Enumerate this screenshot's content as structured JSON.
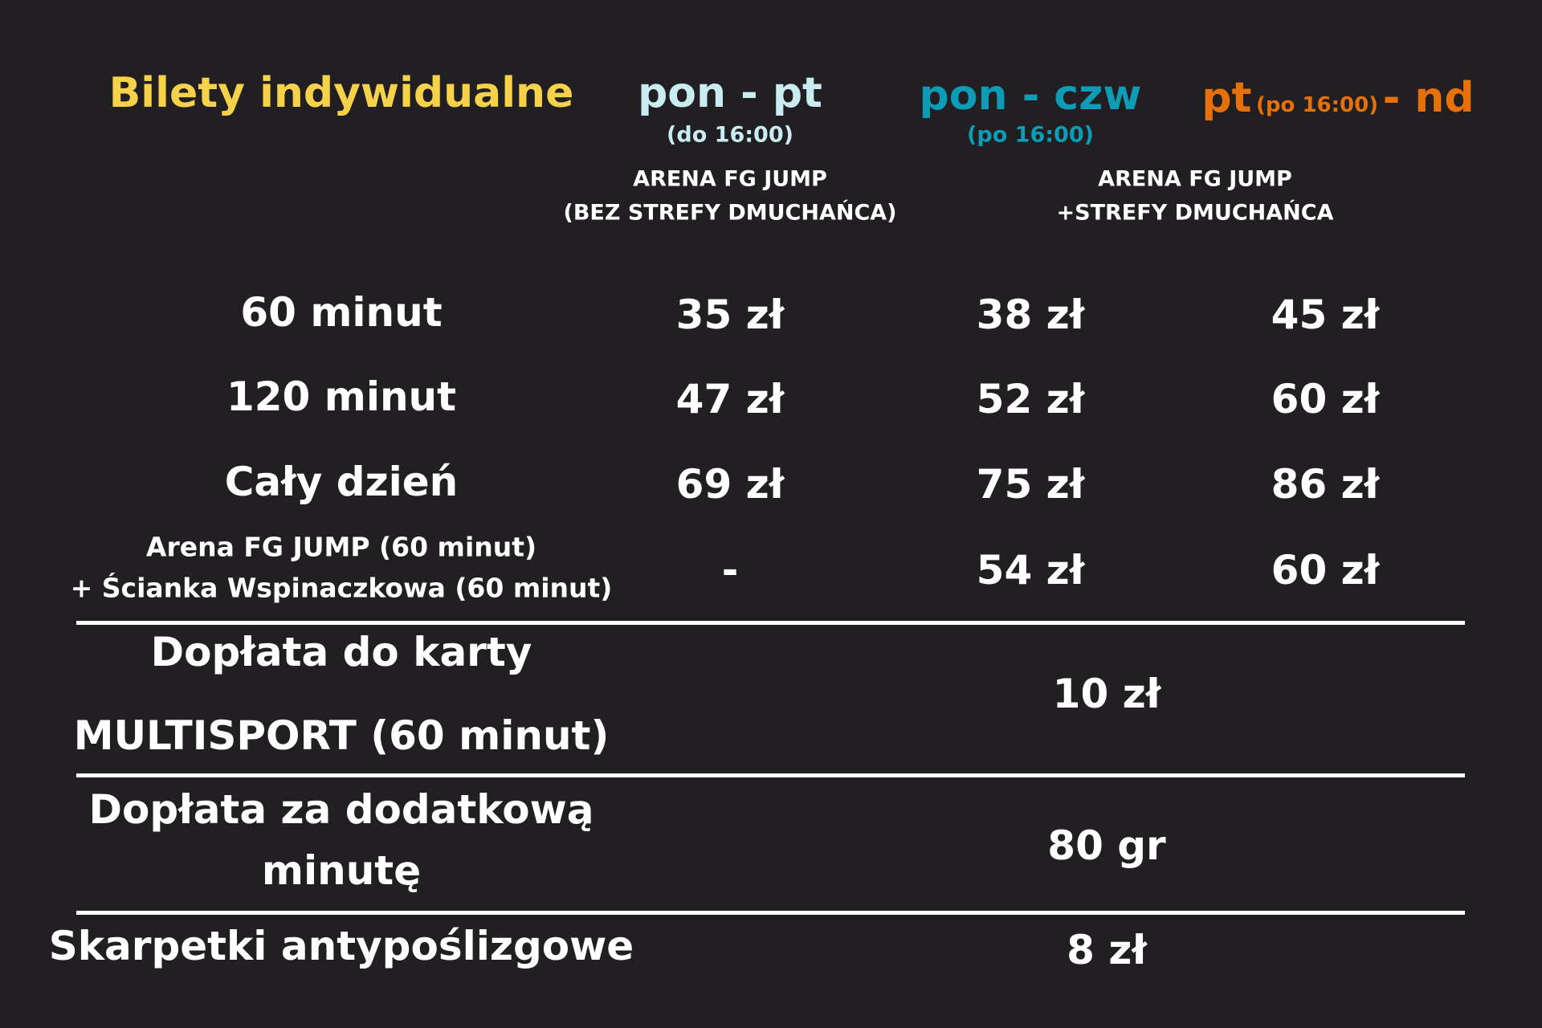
{
  "colors": {
    "background": "#221f22",
    "title": "#f5d24a",
    "col1": "#c8ecf0",
    "col2": "#0e9bb5",
    "col3": "#e6700a",
    "text": "#ffffff"
  },
  "title": "Bilety indywidualne",
  "columns": [
    {
      "label": "pon - pt",
      "note": "(do 16:00)"
    },
    {
      "label": "pon - czw",
      "note": "(po 16:00)"
    },
    {
      "label_a": "pt",
      "note": "(po 16:00)",
      "label_b": "- nd"
    }
  ],
  "groups": [
    {
      "line1": "ARENA FG JUMP",
      "line2": "(BEZ STREFY DMUCHAŃCA)"
    },
    {
      "line1": "ARENA FG JUMP",
      "line2": "+STREFY DMUCHAŃCA"
    }
  ],
  "rows": [
    {
      "label": "60 minut",
      "prices": [
        "35 zł",
        "38 zł",
        "45 zł"
      ]
    },
    {
      "label": "120 minut",
      "prices": [
        "47 zł",
        "52 zł",
        "60 zł"
      ]
    },
    {
      "label": "Cały dzień",
      "prices": [
        "69 zł",
        "75 zł",
        "86 zł"
      ]
    },
    {
      "label_line1": "Arena FG JUMP (60 minut)",
      "label_line2": "+ Ścianka Wspinaczkowa (60 minut)",
      "prices": [
        "-",
        "54 zł",
        "60 zł"
      ]
    }
  ],
  "extras": [
    {
      "line1": "Dopłata do karty",
      "line2": "MULTISPORT (60 minut)",
      "value": "10 zł"
    },
    {
      "line1": "Dopłata za dodatkową",
      "line2": "minutę",
      "value": "80 gr"
    },
    {
      "line1": "Skarpetki antypoślizgowe",
      "value": "8 zł"
    }
  ]
}
